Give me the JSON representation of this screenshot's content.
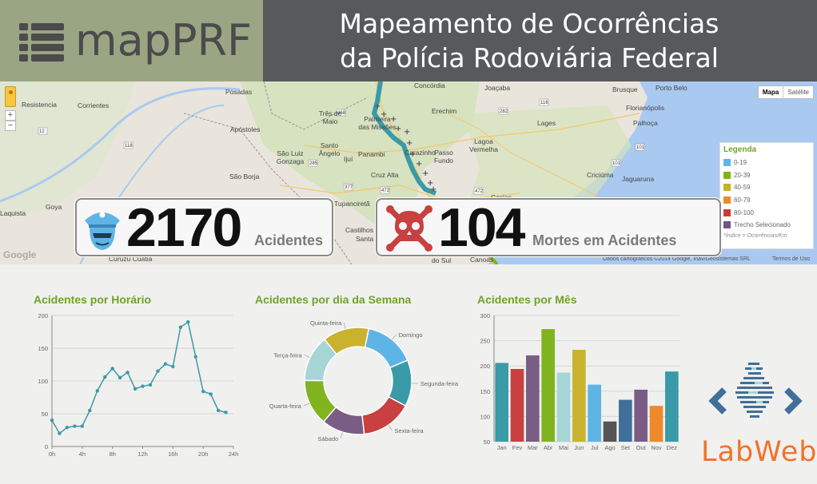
{
  "header": {
    "logo_text": "mapPRF",
    "title_line1": "Mapeamento de Ocorrências",
    "title_line2": "da Polícia Rodoviária Federal",
    "colors": {
      "header_bg": "#58595b",
      "logo_bg": "#9aa584",
      "accent_green": "#6fa32a"
    }
  },
  "map": {
    "maptype_map": "Mapa",
    "maptype_satellite": "Satélite",
    "zoom_in": "+",
    "zoom_out": "−",
    "credit": "Dados cartográficos ©2014 Google, Inav/Geosistemas SRL",
    "terms": "Termos de Uso",
    "google": "Google",
    "places": [
      "Concórdia",
      "Joaçaba",
      "Porto Belo",
      "Brusque",
      "Florianópolis",
      "Palhoça",
      "Posadas",
      "Resistencia",
      "Corrientes",
      "Três de Maio",
      "Palmeira das Missões",
      "Erechim",
      "Lages",
      "Lagoa Vermelha",
      "Apóstoles",
      "Santo Ângelo",
      "Panambi",
      "Carazinho",
      "Passo Fundo",
      "São Luiz Gonzaga",
      "Ijuí",
      "Cruz Alta",
      "São Borja",
      "Tupanciretã",
      "Criciúma",
      "Jaguaruna",
      "Goya",
      "Castilhos",
      "Santa Maria",
      "Curuzú Cuatiá",
      "Canoas",
      "do Sul",
      "Caxias",
      "Laquista"
    ],
    "legend": {
      "title": "Legenda",
      "items": [
        {
          "label": "0-19",
          "color": "#5fb4e6"
        },
        {
          "label": "20-39",
          "color": "#7fb417"
        },
        {
          "label": "40-59",
          "color": "#c7b126"
        },
        {
          "label": "60-79",
          "color": "#f0892a"
        },
        {
          "label": "80-100",
          "color": "#cc3b3b"
        },
        {
          "label": "Trecho Selecionado",
          "color": "#6f5580"
        }
      ],
      "footnote": "*Índice = Ocorrências/Km"
    }
  },
  "stats": {
    "accidents_value": "2170",
    "accidents_label": "Acidentes",
    "deaths_value": "104",
    "deaths_label": "Mortes em Acidentes"
  },
  "charts": {
    "hour_title": "Acidentes por Horário",
    "weekday_title": "Acidentes por dia da Semana",
    "month_title": "Acidentes por Mês"
  },
  "chart_data": [
    {
      "type": "line",
      "title": "Acidentes por Horário",
      "x_tick_labels": [
        "0h",
        "4h",
        "8h",
        "12h",
        "16h",
        "20h",
        "24h"
      ],
      "y_ticks": [
        0,
        50,
        100,
        150,
        200
      ],
      "ylim": [
        0,
        200
      ],
      "x": [
        0,
        1,
        2,
        3,
        4,
        5,
        6,
        7,
        8,
        9,
        10,
        11,
        12,
        13,
        14,
        15,
        16,
        17,
        18,
        19,
        20,
        21,
        22,
        23
      ],
      "values": [
        40,
        20,
        29,
        31,
        31,
        55,
        85,
        106,
        119,
        105,
        113,
        88,
        92,
        94,
        115,
        126,
        122,
        182,
        190,
        137,
        84,
        80,
        55,
        52
      ],
      "color": "#3a9aa8",
      "grid": true
    },
    {
      "type": "pie",
      "title": "Acidentes por dia da Semana",
      "donut": true,
      "labels": [
        "Domingo",
        "Segunda-feira",
        "Sexta-feira",
        "Sábado",
        "Quarta-feira",
        "Terça-feira",
        "Quinta-feira"
      ],
      "values": [
        15.5,
        14,
        15.5,
        13,
        14,
        14,
        14
      ],
      "colors": [
        "#5fb4e6",
        "#3a9aa8",
        "#c94040",
        "#7a5d85",
        "#80b41f",
        "#a6d5d6",
        "#c9b32e"
      ]
    },
    {
      "type": "bar",
      "title": "Acidentes por Mês",
      "categories": [
        "Jan",
        "Fev",
        "Mar",
        "Abr",
        "Mai",
        "Jun",
        "Jul",
        "Ago",
        "Set",
        "Out",
        "Nov",
        "Dez"
      ],
      "values": [
        206,
        194,
        221,
        273,
        187,
        232,
        163,
        90,
        133,
        153,
        121,
        189
      ],
      "colors": [
        "#3a9aa8",
        "#c94040",
        "#7a5d85",
        "#80b41f",
        "#a6d5d6",
        "#c9b32e",
        "#5fb4e6",
        "#555555",
        "#3f6f9a",
        "#7a5d85",
        "#f0892a",
        "#3a9aa8"
      ],
      "y_ticks": [
        50,
        100,
        150,
        200,
        250,
        300
      ],
      "ylim": [
        50,
        300
      ],
      "grid": true
    }
  ],
  "brand": {
    "labweb_text": "LabWeb"
  }
}
